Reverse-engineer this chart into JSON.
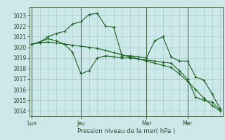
{
  "background_color": "#cce8e8",
  "grid_color": "#a8cccc",
  "line_color": "#1a6020",
  "marker_color": "#1a6020",
  "xlabel_text": "Pression niveau de la mer( hPa )",
  "ylim": [
    1013.5,
    1023.8
  ],
  "yticks": [
    1014,
    1015,
    1016,
    1017,
    1018,
    1019,
    1020,
    1021,
    1022,
    1023
  ],
  "xtick_labels": [
    "Lun",
    "Jeu",
    "Mar",
    "Mer"
  ],
  "xtick_positions": [
    0,
    6,
    14,
    19
  ],
  "n_points": 24,
  "series1": [
    1020.3,
    1020.5,
    1021.0,
    1021.3,
    1021.5,
    1022.2,
    1022.4,
    1023.1,
    1023.2,
    1022.0,
    1021.9,
    1019.2,
    1019.2,
    1019.1,
    1019.0,
    1020.6,
    1021.0,
    1019.1,
    1018.7,
    1018.7,
    1017.2,
    1016.9,
    1015.6,
    1014.2
  ],
  "series2": [
    1020.3,
    1020.5,
    1020.8,
    1020.6,
    1020.3,
    1019.5,
    1017.5,
    1017.8,
    1019.0,
    1019.2,
    1019.1,
    1019.0,
    1019.0,
    1018.9,
    1018.8,
    1018.7,
    1018.6,
    1018.5,
    1017.8,
    1017.0,
    1015.3,
    1015.0,
    1014.8,
    1014.1
  ],
  "series3": [
    1020.3,
    1020.4,
    1020.5,
    1020.4,
    1020.3,
    1020.2,
    1020.1,
    1020.0,
    1019.9,
    1019.7,
    1019.5,
    1019.3,
    1019.1,
    1018.9,
    1018.7,
    1018.5,
    1018.3,
    1018.1,
    1017.5,
    1016.8,
    1016.0,
    1015.2,
    1014.5,
    1014.0
  ]
}
